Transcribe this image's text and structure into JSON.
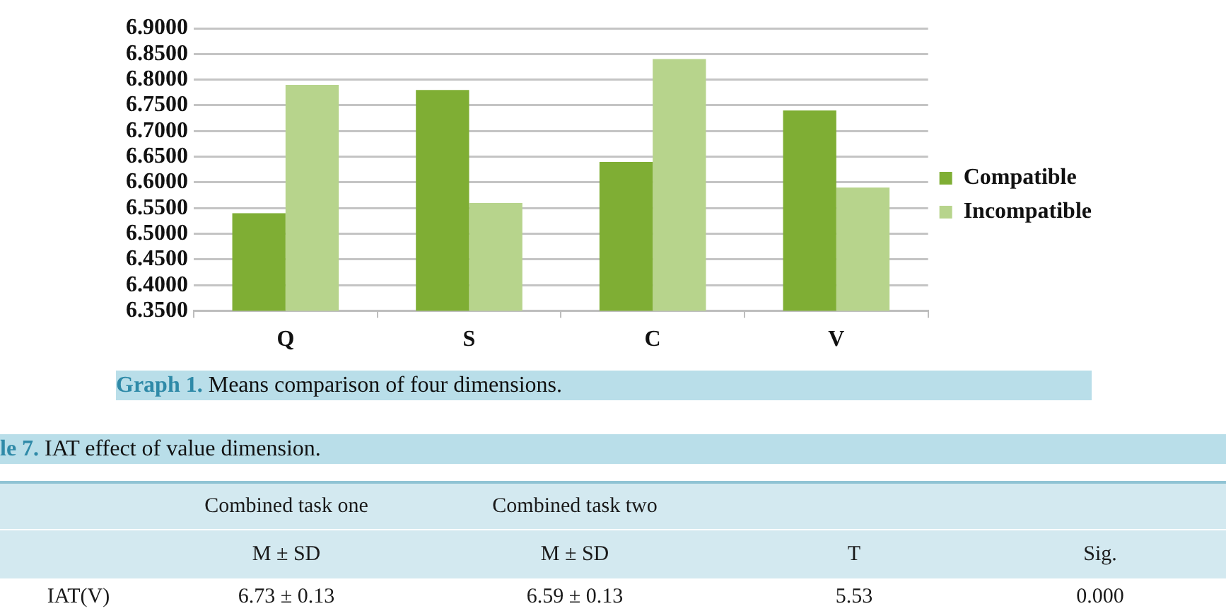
{
  "chart_data": [
    {
      "type": "bar",
      "categories": [
        "Q",
        "S",
        "C",
        "V"
      ],
      "series": [
        {
          "name": "Compatible",
          "color": "#7fae34",
          "values": [
            6.54,
            6.78,
            6.64,
            6.74
          ]
        },
        {
          "name": "Incompatible",
          "color": "#b7d48c",
          "values": [
            6.79,
            6.56,
            6.84,
            6.59
          ]
        }
      ],
      "ylim": [
        6.35,
        6.9
      ],
      "yticks": [
        {
          "value": 6.35,
          "label": "6.3500"
        },
        {
          "value": 6.4,
          "label": "6.4000"
        },
        {
          "value": 6.45,
          "label": "6.4500"
        },
        {
          "value": 6.5,
          "label": "6.5000"
        },
        {
          "value": 6.55,
          "label": "6.5500"
        },
        {
          "value": 6.6,
          "label": "6.6000"
        },
        {
          "value": 6.65,
          "label": "6.6500"
        },
        {
          "value": 6.7,
          "label": "6.7000"
        },
        {
          "value": 6.75,
          "label": "6.7500"
        },
        {
          "value": 6.8,
          "label": "6.8000"
        },
        {
          "value": 6.85,
          "label": "6.8500"
        },
        {
          "value": 6.9,
          "label": "6.9000"
        }
      ],
      "grid": "y",
      "legend": "right",
      "annotations": [
        "Graph 1. Means comparison of four dimensions."
      ]
    },
    {
      "type": "other",
      "title": "le 7. IAT effect of value dimension.",
      "annotations": [
        "Combined task one",
        "Combined task two",
        "M ± SD",
        "M ± SD",
        "T",
        "Sig.",
        "IAT(V)",
        "6.73 ± 0.13",
        "6.59 ± 0.13",
        "5.53",
        "0.000"
      ]
    }
  ]
}
